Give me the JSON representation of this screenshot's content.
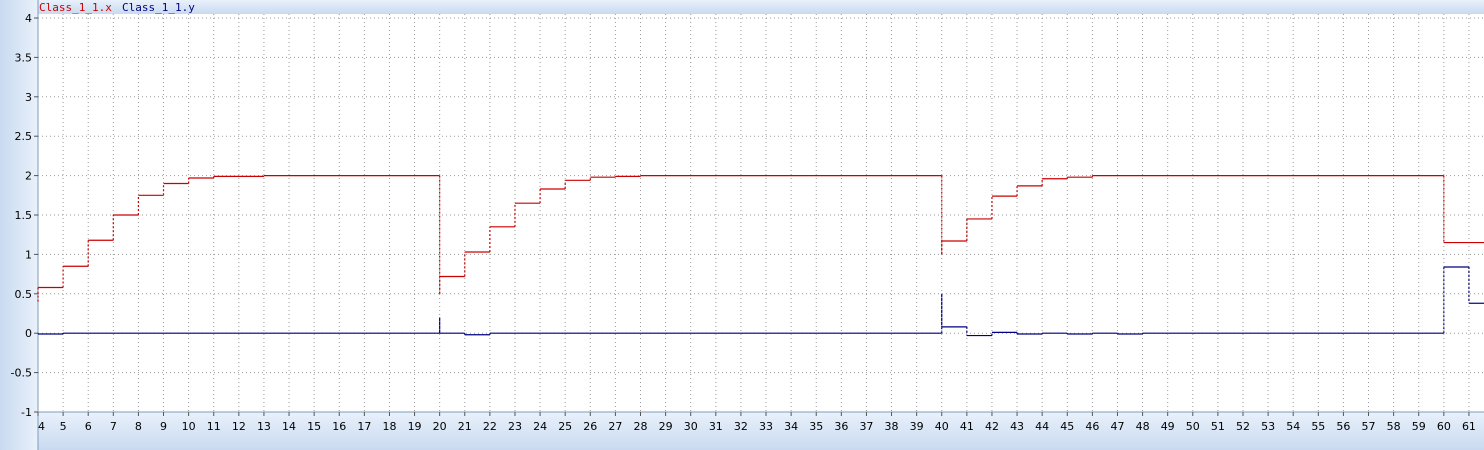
{
  "chart_data": {
    "type": "line",
    "step": true,
    "xlim": [
      4,
      61.6
    ],
    "ylim": [
      -1,
      4
    ],
    "grid": true,
    "legend_placement": "top-left",
    "y_ticks": [
      "4",
      "3.5",
      "3",
      "2.5",
      "2",
      "1.5",
      "1",
      "0.5",
      "0",
      "-0.5",
      "-1"
    ],
    "x_ticks": [
      "4",
      "5",
      "6",
      "7",
      "8",
      "9",
      "10",
      "11",
      "12",
      "13",
      "14",
      "15",
      "16",
      "17",
      "18",
      "19",
      "20",
      "21",
      "22",
      "23",
      "24",
      "25",
      "26",
      "27",
      "28",
      "29",
      "30",
      "31",
      "32",
      "33",
      "34",
      "35",
      "36",
      "37",
      "38",
      "39",
      "40",
      "41",
      "42",
      "43",
      "44",
      "45",
      "46",
      "47",
      "48",
      "49",
      "50",
      "51",
      "52",
      "53",
      "54",
      "55",
      "56",
      "57",
      "58",
      "59",
      "60",
      "61"
    ],
    "series": [
      {
        "name": "Class_1_1.x",
        "color": "#cc0000",
        "points": [
          [
            4,
            0.4
          ],
          [
            4,
            0.58
          ],
          [
            5,
            0.58
          ],
          [
            5,
            0.85
          ],
          [
            6,
            0.85
          ],
          [
            6,
            1.18
          ],
          [
            7,
            1.18
          ],
          [
            7,
            1.5
          ],
          [
            8,
            1.5
          ],
          [
            8,
            1.75
          ],
          [
            9,
            1.75
          ],
          [
            9,
            1.9
          ],
          [
            10,
            1.9
          ],
          [
            10,
            1.97
          ],
          [
            11,
            1.97
          ],
          [
            11,
            1.99
          ],
          [
            13,
            1.99
          ],
          [
            13,
            2.0
          ],
          [
            20,
            2.0
          ],
          [
            20,
            0.5
          ],
          [
            20,
            0.72
          ],
          [
            21,
            0.72
          ],
          [
            21,
            1.03
          ],
          [
            22,
            1.03
          ],
          [
            22,
            1.35
          ],
          [
            23,
            1.35
          ],
          [
            23,
            1.65
          ],
          [
            24,
            1.65
          ],
          [
            24,
            1.83
          ],
          [
            25,
            1.83
          ],
          [
            25,
            1.94
          ],
          [
            26,
            1.94
          ],
          [
            26,
            1.98
          ],
          [
            27,
            1.98
          ],
          [
            27,
            1.99
          ],
          [
            28,
            1.99
          ],
          [
            28,
            2.0
          ],
          [
            40,
            2.0
          ],
          [
            40,
            1.0
          ],
          [
            40,
            1.17
          ],
          [
            41,
            1.17
          ],
          [
            41,
            1.45
          ],
          [
            42,
            1.45
          ],
          [
            42,
            1.74
          ],
          [
            43,
            1.74
          ],
          [
            43,
            1.87
          ],
          [
            44,
            1.87
          ],
          [
            44,
            1.96
          ],
          [
            45,
            1.96
          ],
          [
            45,
            1.98
          ],
          [
            46,
            1.98
          ],
          [
            46,
            2.0
          ],
          [
            60,
            2.0
          ],
          [
            60,
            1.15
          ],
          [
            61.6,
            1.15
          ]
        ]
      },
      {
        "name": "Class_1_1.y",
        "color": "#000080",
        "points": [
          [
            4,
            0.0
          ],
          [
            4,
            -0.01
          ],
          [
            5,
            -0.01
          ],
          [
            5,
            0.0
          ],
          [
            20,
            0.0
          ],
          [
            20,
            0.2
          ],
          [
            20,
            0.0
          ],
          [
            21,
            0.0
          ],
          [
            21,
            -0.02
          ],
          [
            22,
            -0.02
          ],
          [
            22,
            0.0
          ],
          [
            40,
            0.0
          ],
          [
            40,
            0.5
          ],
          [
            40,
            0.08
          ],
          [
            41,
            0.08
          ],
          [
            41,
            -0.03
          ],
          [
            42,
            -0.03
          ],
          [
            42,
            0.01
          ],
          [
            43,
            0.01
          ],
          [
            43,
            -0.01
          ],
          [
            44,
            -0.01
          ],
          [
            44,
            0.0
          ],
          [
            45,
            0.0
          ],
          [
            45,
            -0.01
          ],
          [
            46,
            -0.01
          ],
          [
            46,
            0.0
          ],
          [
            47,
            0.0
          ],
          [
            47,
            -0.01
          ],
          [
            48,
            -0.01
          ],
          [
            48,
            0.0
          ],
          [
            60,
            0.0
          ],
          [
            60,
            0.84
          ],
          [
            61,
            0.84
          ],
          [
            61,
            0.38
          ],
          [
            61.6,
            0.38
          ]
        ]
      }
    ]
  }
}
